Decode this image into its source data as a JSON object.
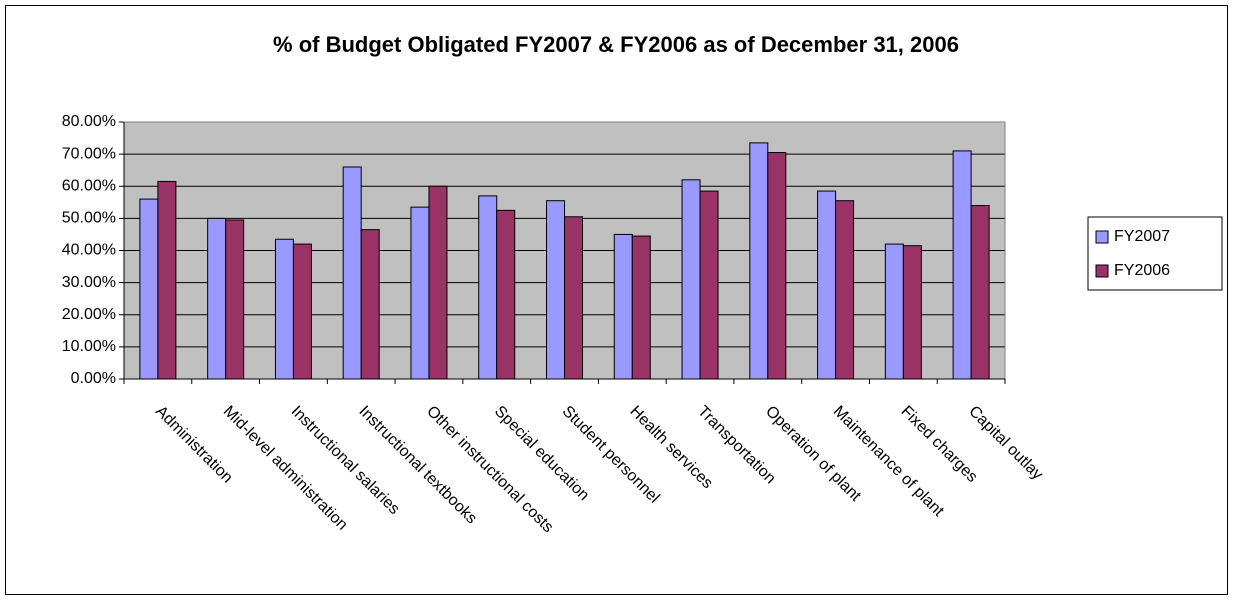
{
  "chart_data": {
    "type": "bar",
    "title": "% of Budget Obligated FY2007 & FY2006 as of December 31, 2006",
    "categories": [
      "Administration",
      "Mid-level administration",
      "Instructional salaries",
      "Instructional textbooks",
      "Other instructional costs",
      "Special education",
      "Student personnel",
      "Health services",
      "Transportation",
      "Operation of plant",
      "Maintenance of plant",
      "Fixed charges",
      "Capital outlay"
    ],
    "series": [
      {
        "name": "FY2007",
        "color": "#9999ff",
        "values": [
          56,
          50,
          43.5,
          66,
          53.5,
          57,
          55.5,
          45,
          62,
          73.5,
          58.5,
          42,
          71
        ]
      },
      {
        "name": "FY2006",
        "color": "#993366",
        "values": [
          61.5,
          49.5,
          42,
          46.5,
          60,
          52.5,
          50.5,
          44.5,
          58.5,
          70.5,
          55.5,
          41.5,
          54
        ]
      }
    ],
    "ylim": [
      0,
      80
    ],
    "yticks": [
      {
        "value": 0,
        "label": "0.00%"
      },
      {
        "value": 10,
        "label": "10.00%"
      },
      {
        "value": 20,
        "label": "20.00%"
      },
      {
        "value": 30,
        "label": "30.00%"
      },
      {
        "value": 40,
        "label": "40.00%"
      },
      {
        "value": 50,
        "label": "50.00%"
      },
      {
        "value": 60,
        "label": "60.00%"
      },
      {
        "value": 70,
        "label": "70.00%"
      },
      {
        "value": 80,
        "label": "80.00%"
      }
    ],
    "grid": true,
    "legend": "right"
  }
}
